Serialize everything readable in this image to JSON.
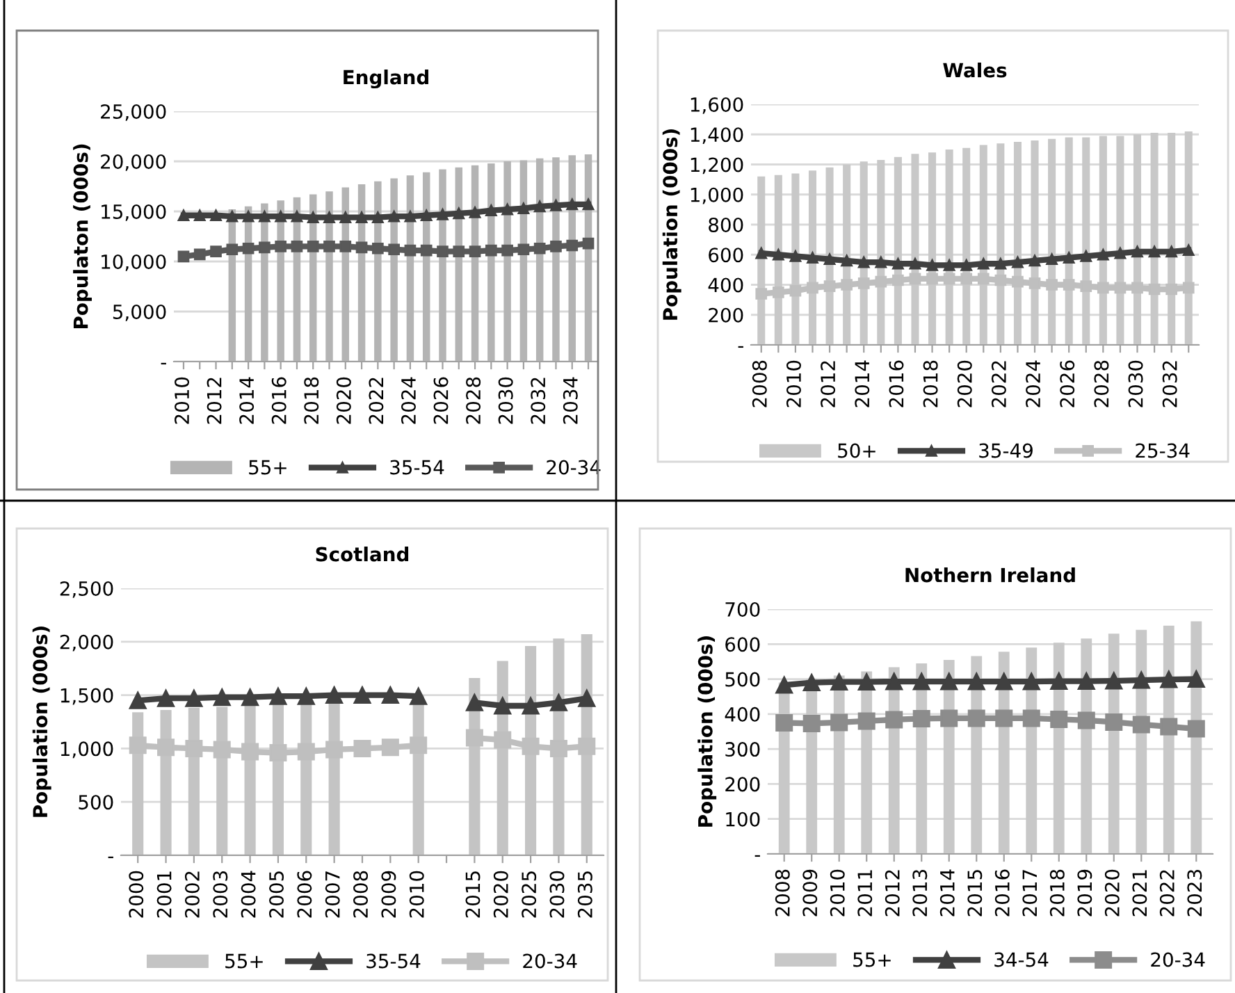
{
  "chart_data": [
    {
      "type": "bar",
      "title": "England",
      "ylabel": "Populaton (000s)",
      "categories": [
        "2010",
        null,
        "2012",
        null,
        "2014",
        null,
        "2016",
        null,
        "2018",
        null,
        "2020",
        null,
        "2022",
        null,
        "2024",
        null,
        "2026",
        null,
        "2028",
        null,
        "2030",
        null,
        "2032",
        null,
        "2034",
        null
      ],
      "series": [
        {
          "name": "55+",
          "color": "#b4b4b4",
          "values": [
            null,
            null,
            null,
            15200,
            15500,
            15800,
            16100,
            16400,
            16700,
            17000,
            17400,
            17700,
            18000,
            18300,
            18600,
            18900,
            19200,
            19400,
            19600,
            19800,
            20000,
            20100,
            20300,
            20400,
            20600,
            20700
          ]
        },
        {
          "name": "35-54",
          "type": "line",
          "color": "#404040",
          "marker": "triangle",
          "values": [
            14600,
            14600,
            14600,
            14500,
            14500,
            14500,
            14500,
            14500,
            14400,
            14400,
            14400,
            14400,
            14400,
            14500,
            14500,
            14600,
            14700,
            14800,
            14900,
            15100,
            15200,
            15300,
            15500,
            15600,
            15700,
            15700
          ]
        },
        {
          "name": "20-34",
          "type": "line",
          "color": "#595959",
          "marker": "square",
          "values": [
            10500,
            10700,
            11000,
            11200,
            11300,
            11400,
            11500,
            11500,
            11500,
            11500,
            11500,
            11400,
            11300,
            11200,
            11100,
            11100,
            11000,
            11000,
            11000,
            11100,
            11100,
            11200,
            11300,
            11500,
            11600,
            11800
          ]
        }
      ],
      "ylim": [
        0,
        25000
      ],
      "yticks": [
        {
          "value": 0,
          "label": "-"
        },
        {
          "value": 5000,
          "label": "5,000"
        },
        {
          "value": 10000,
          "label": "10,000"
        },
        {
          "value": 15000,
          "label": "15,000"
        },
        {
          "value": 20000,
          "label": "20,000"
        },
        {
          "value": 25000,
          "label": "25,000"
        }
      ],
      "grid": "y",
      "legend": "bottom",
      "line_style": "solid"
    },
    {
      "type": "bar",
      "title": "Wales",
      "ylabel": "Population (000s)",
      "categories": [
        "2008",
        null,
        "2010",
        null,
        "2012",
        null,
        "2014",
        null,
        "2016",
        null,
        "2018",
        null,
        "2020",
        null,
        "2022",
        null,
        "2024",
        null,
        "2026",
        null,
        "2028",
        null,
        "2030",
        null,
        "2032",
        null
      ],
      "series": [
        {
          "name": "50+",
          "color": "#c8c8c8",
          "values": [
            1120,
            1130,
            1140,
            1160,
            1180,
            1200,
            1220,
            1230,
            1250,
            1270,
            1280,
            1300,
            1310,
            1330,
            1340,
            1350,
            1360,
            1370,
            1380,
            1380,
            1390,
            1390,
            1400,
            1410,
            1410,
            1420
          ]
        },
        {
          "name": "35-49",
          "type": "line",
          "color": "#404040",
          "marker": "triangle",
          "values": [
            610,
            600,
            590,
            580,
            570,
            560,
            550,
            550,
            540,
            540,
            530,
            530,
            530,
            540,
            540,
            550,
            560,
            570,
            580,
            590,
            600,
            610,
            620,
            620,
            620,
            630
          ]
        },
        {
          "name": "25-34",
          "type": "line",
          "color": "#bfbfbf",
          "marker": "square",
          "values": [
            340,
            350,
            360,
            380,
            390,
            400,
            410,
            420,
            430,
            440,
            440,
            440,
            440,
            440,
            430,
            420,
            410,
            400,
            400,
            390,
            380,
            380,
            380,
            370,
            370,
            380
          ]
        }
      ],
      "ylim": [
        0,
        1600
      ],
      "yticks": [
        {
          "value": 0,
          "label": "-"
        },
        200,
        400,
        600,
        800,
        {
          "value": 1000,
          "label": "1,000"
        },
        {
          "value": 1200,
          "label": "1,200"
        },
        {
          "value": 1400,
          "label": "1,400"
        },
        {
          "value": 1600,
          "label": "1,600"
        }
      ],
      "grid": "y",
      "legend": "bottom",
      "line_style": "solid"
    },
    {
      "type": "bar",
      "title": "Scotland",
      "ylabel": "Population (000s)",
      "categories": [
        "2000",
        "2001",
        "2002",
        "2003",
        "2004",
        "2005",
        "2006",
        "2007",
        "2008",
        "2009",
        "2010",
        null,
        "2015",
        "2020",
        "2025",
        "2030",
        "2035"
      ],
      "series": [
        {
          "name": "55+",
          "color": "#c4c4c4",
          "values": [
            1340,
            1360,
            1380,
            1390,
            1410,
            1420,
            1440,
            1450,
            null,
            null,
            1500,
            null,
            1660,
            1820,
            1960,
            2030,
            2070
          ]
        },
        {
          "name": "35-54",
          "type": "line",
          "color": "#404040",
          "marker": "triangle",
          "values": [
            1450,
            1470,
            1470,
            1480,
            1480,
            1490,
            1490,
            1500,
            1500,
            1500,
            1490,
            null,
            1430,
            1400,
            1400,
            1430,
            1470
          ]
        },
        {
          "name": "20-34",
          "type": "line",
          "color": "#bfbfbf",
          "marker": "square",
          "values": [
            1030,
            1010,
            1000,
            990,
            970,
            960,
            970,
            990,
            1000,
            1010,
            1030,
            null,
            1100,
            1080,
            1020,
            1000,
            1020
          ]
        }
      ],
      "ylim": [
        0,
        2500
      ],
      "yticks": [
        {
          "value": 0,
          "label": "-"
        },
        500,
        {
          "value": 1000,
          "label": "1,000"
        },
        {
          "value": 1500,
          "label": "1,500"
        },
        {
          "value": 2000,
          "label": "2,000"
        },
        {
          "value": 2500,
          "label": "2,500"
        }
      ],
      "grid": "y",
      "legend": "bottom",
      "line_style": "solid"
    },
    {
      "type": "bar",
      "title": "Nothern Ireland",
      "ylabel": "Population (000s)",
      "categories": [
        "2008",
        "2009",
        "2010",
        "2011",
        "2012",
        "2013",
        "2014",
        "2015",
        "2016",
        "2017",
        "2018",
        "2019",
        "2020",
        "2021",
        "2022",
        "2023"
      ],
      "series": [
        {
          "name": "55+",
          "color": "#c8c8c8",
          "values": [
            490,
            500,
            510,
            522,
            534,
            545,
            555,
            566,
            578,
            590,
            604,
            616,
            630,
            641,
            653,
            665
          ]
        },
        {
          "name": "34-54",
          "type": "line",
          "color": "#404040",
          "marker": "triangle",
          "values": [
            483,
            490,
            492,
            492,
            493,
            493,
            493,
            493,
            493,
            493,
            494,
            494,
            495,
            497,
            499,
            500
          ]
        },
        {
          "name": "20-34",
          "type": "line",
          "color": "#8c8c8c",
          "marker": "square",
          "values": [
            375,
            373,
            376,
            380,
            384,
            387,
            388,
            388,
            388,
            388,
            385,
            382,
            377,
            370,
            364,
            358
          ]
        }
      ],
      "ylim": [
        0,
        700
      ],
      "yticks": [
        {
          "value": 0,
          "label": "-"
        },
        100,
        200,
        300,
        400,
        500,
        600,
        700
      ],
      "grid": "y",
      "legend": "bottom",
      "line_style": "solid"
    }
  ]
}
